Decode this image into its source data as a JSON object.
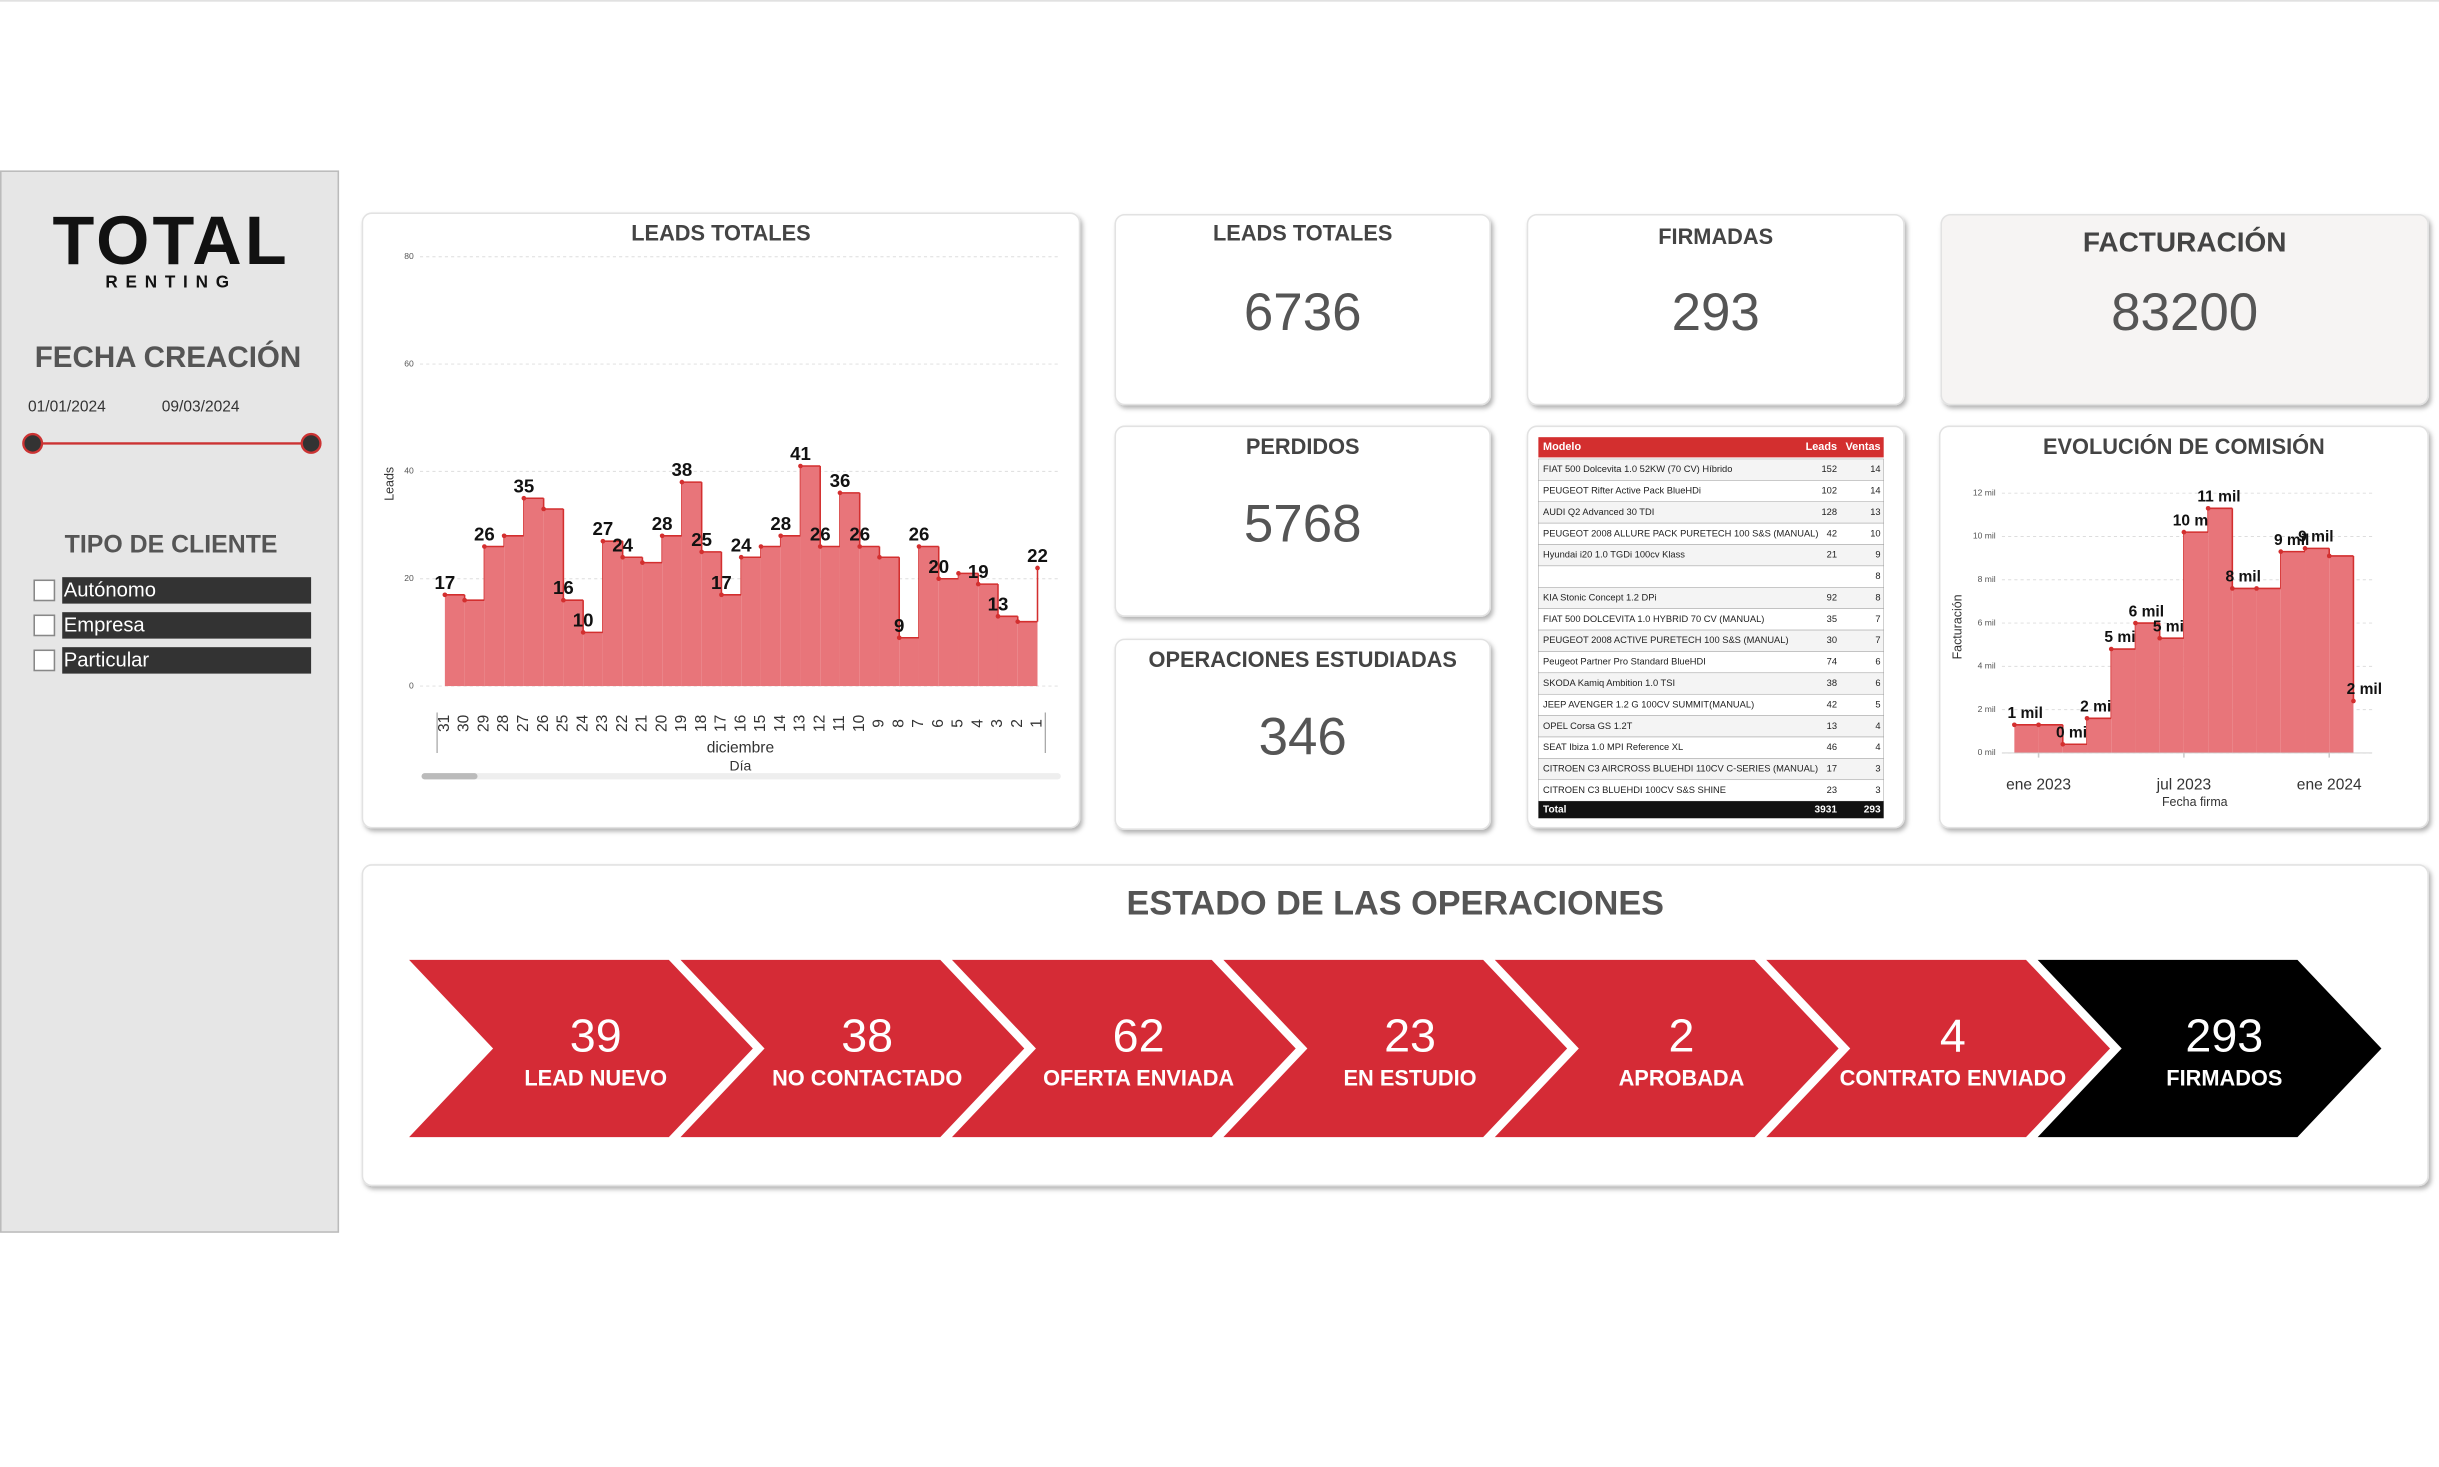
{
  "sidebar": {
    "logo": "TOTAL",
    "logo_sub": "RENTING",
    "date_title": "FECHA CREACIÓN",
    "date_from": "01/01/2024",
    "date_to": "09/03/2024",
    "client_title": "TIPO DE CLIENTE",
    "client_options": [
      "Autónomo",
      "Empresa",
      "Particular"
    ]
  },
  "kpis": [
    {
      "title": "LEADS TOTALES",
      "value": 6736
    },
    {
      "title": "FIRMADAS",
      "value": 293
    },
    {
      "title": "FACTURACIÓN",
      "value": 83200
    },
    {
      "title": "PERDIDOS",
      "value": 5768
    },
    {
      "title": "OPERACIONES ESTUDIADAS",
      "value": 346
    }
  ],
  "table": {
    "columns": [
      "Modelo",
      "Leads",
      "Ventas"
    ],
    "rows": [
      [
        "FIAT 500 Dolcevita 1.0 52KW (70 CV) Híbrido",
        152,
        14
      ],
      [
        "PEUGEOT Rifter Active Pack BlueHDi",
        102,
        14
      ],
      [
        "AUDI Q2 Advanced 30 TDI",
        128,
        13
      ],
      [
        "PEUGEOT 2008 ALLURE PACK PURETECH 100 S&S (MANUAL)",
        42,
        10
      ],
      [
        "Hyundai i20 1.0 TGDi 100cv Klass",
        21,
        9
      ],
      [
        null,
        null,
        8
      ],
      [
        "KIA Stonic Concept 1.2 DPi",
        92,
        8
      ],
      [
        "FIAT 500 DOLCEVITA 1.0 HYBRID 70 CV (MANUAL)",
        35,
        7
      ],
      [
        "PEUGEOT 2008 ACTIVE PURETECH 100 S&S (MANUAL)",
        30,
        7
      ],
      [
        "Peugeot Partner Pro Standard BlueHDI",
        74,
        6
      ],
      [
        "SKODA Kamiq Ambition 1.0 TSI",
        38,
        6
      ],
      [
        "JEEP AVENGER 1.2 G 100CV SUMMIT(MANUAL)",
        42,
        5
      ],
      [
        "OPEL Corsa GS 1.2T",
        13,
        4
      ],
      [
        "SEAT Ibiza 1.0 MPI Reference XL",
        46,
        4
      ],
      [
        "CITROEN C3 AIRCROSS BLUEHDI 110CV C-SERIES (MANUAL)",
        17,
        3
      ],
      [
        "CITROEN C3 BLUEHDI 100CV S&S SHINE",
        23,
        3
      ]
    ],
    "total": [
      "Total",
      3931,
      293
    ]
  },
  "funnel": {
    "title": "ESTADO DE LAS OPERACIONES",
    "stages": [
      {
        "value": 39,
        "label": "LEAD NUEVO",
        "color": "#d52b36"
      },
      {
        "value": 38,
        "label": "NO CONTACTADO",
        "color": "#d52b36"
      },
      {
        "value": 62,
        "label": "OFERTA ENVIADA",
        "color": "#d52b36"
      },
      {
        "value": 23,
        "label": "EN ESTUDIO",
        "color": "#d52b36"
      },
      {
        "value": 2,
        "label": "APROBADA",
        "color": "#d52b36"
      },
      {
        "value": 4,
        "label": "CONTRATO ENVIADO",
        "color": "#d52b36"
      },
      {
        "value": 293,
        "label": "FIRMADOS",
        "color": "#000000"
      }
    ]
  },
  "chart_data": [
    {
      "type": "step-area",
      "title": "LEADS TOTALES",
      "x_label": "Día",
      "x_group": "diciembre",
      "y_label": "Leads",
      "categories": [
        "31",
        "30",
        "29",
        "28",
        "27",
        "26",
        "25",
        "24",
        "23",
        "22",
        "21",
        "20",
        "19",
        "18",
        "17",
        "16",
        "15",
        "14",
        "13",
        "12",
        "11",
        "10",
        "9",
        "8",
        "7",
        "6",
        "5",
        "4",
        "3",
        "2",
        "1"
      ],
      "values": [
        17,
        16,
        26,
        28,
        35,
        33,
        16,
        10,
        27,
        24,
        23,
        28,
        38,
        25,
        17,
        24,
        26,
        28,
        41,
        26,
        36,
        26,
        24,
        9,
        26,
        20,
        21,
        19,
        13,
        12,
        22
      ],
      "value_labels": [
        "17",
        null,
        "26",
        null,
        "35",
        null,
        "16",
        "10",
        "27",
        "24",
        null,
        "28",
        "38",
        "25",
        "17",
        "24",
        null,
        "28",
        "41",
        "26",
        "36",
        "26",
        null,
        "9",
        "26",
        "20",
        null,
        "19",
        "13",
        null,
        "22"
      ],
      "color": "#e8757a",
      "line_color": "#d32f2f",
      "ylim": [
        0,
        80
      ],
      "yticks": [
        0,
        20,
        40,
        60,
        80
      ],
      "grid": true
    },
    {
      "type": "step-area",
      "title": "EVOLUCIÓN DE COMISIÓN",
      "x_label": "Fecha firma",
      "y_label": "Facturación",
      "x": [
        "2022-12",
        "2023-01",
        "2023-02",
        "2023-03",
        "2023-04",
        "2023-05",
        "2023-06",
        "2023-07",
        "2023-08",
        "2023-09",
        "2023-10",
        "2023-11",
        "2023-12",
        "2024-01",
        "2024-02"
      ],
      "values": [
        1300,
        1300,
        400,
        1600,
        4800,
        6000,
        5300,
        10200,
        11300,
        7600,
        7600,
        9300,
        9450,
        9100,
        2400
      ],
      "value_labels": [
        "1 mil",
        null,
        "0 mil",
        "2 mil",
        "5 mil",
        "6 mil",
        "5 mil",
        "10 mil",
        "11 mil",
        "8 mil",
        null,
        "9 mil",
        "9 mil",
        null,
        "2 mil"
      ],
      "xticks": [
        {
          "value": "2023-01",
          "label": "ene 2023"
        },
        {
          "value": "2023-07",
          "label": "jul 2023"
        },
        {
          "value": "2024-01",
          "label": "ene 2024"
        }
      ],
      "color": "#e8757a",
      "line_color": "#d32f2f",
      "ylim": [
        0,
        12000
      ],
      "yticks": [
        {
          "value": 0,
          "label": "0 mil"
        },
        {
          "value": 2000,
          "label": "2 mil"
        },
        {
          "value": 4000,
          "label": "4 mil"
        },
        {
          "value": 6000,
          "label": "6 mil"
        },
        {
          "value": 8000,
          "label": "8 mil"
        },
        {
          "value": 10000,
          "label": "10 mil"
        },
        {
          "value": 12000,
          "label": "12 mil"
        }
      ],
      "grid": true
    }
  ]
}
